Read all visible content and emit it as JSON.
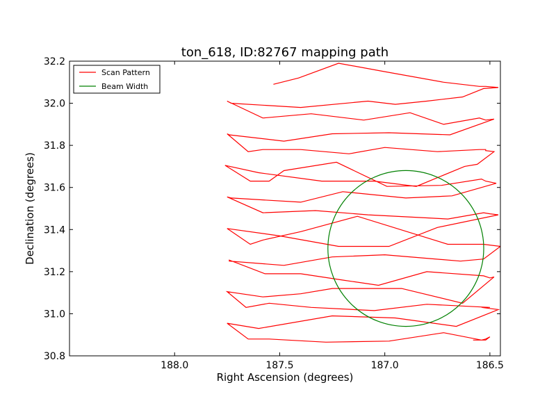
{
  "chart_data": {
    "type": "line",
    "title": "ton_618, ID:82767 mapping path",
    "xlabel": "Right Ascension (degrees)",
    "ylabel": "Declination (degrees)",
    "xlim": [
      188.5,
      186.45
    ],
    "ylim": [
      30.8,
      32.2
    ],
    "x_inverted": true,
    "xticks": [
      "188.0",
      "187.5",
      "187.0",
      "186.5"
    ],
    "xtick_values": [
      188.0,
      187.5,
      187.0,
      186.5
    ],
    "yticks": [
      "30.8",
      "31.0",
      "31.2",
      "31.4",
      "31.6",
      "31.8",
      "32.0",
      "32.2"
    ],
    "ytick_values": [
      30.8,
      31.0,
      31.2,
      31.4,
      31.6,
      31.8,
      32.0,
      32.2
    ],
    "grid": false,
    "legend_position": "top-left",
    "series": [
      {
        "name": "Scan Pattern",
        "color": "#ff0000",
        "kind": "path",
        "points": [
          [
            186.58,
            30.875
          ],
          [
            186.52,
            30.875
          ],
          [
            186.5,
            30.89
          ],
          [
            186.52,
            30.88
          ],
          [
            186.54,
            30.875
          ],
          [
            186.72,
            30.91
          ],
          [
            186.98,
            30.87
          ],
          [
            187.28,
            30.865
          ],
          [
            187.55,
            30.88
          ],
          [
            187.65,
            30.88
          ],
          [
            187.75,
            30.955
          ],
          [
            187.6,
            30.93
          ],
          [
            187.25,
            30.99
          ],
          [
            186.95,
            30.98
          ],
          [
            186.66,
            30.94
          ],
          [
            186.46,
            31.02
          ],
          [
            186.54,
            31.03
          ],
          [
            186.5,
            31.03
          ],
          [
            186.8,
            31.045
          ],
          [
            187.05,
            31.015
          ],
          [
            187.35,
            31.03
          ],
          [
            187.55,
            31.05
          ],
          [
            187.66,
            31.03
          ],
          [
            187.75,
            31.105
          ],
          [
            187.58,
            31.08
          ],
          [
            187.4,
            31.095
          ],
          [
            187.25,
            31.12
          ],
          [
            186.92,
            31.12
          ],
          [
            186.63,
            31.05
          ],
          [
            186.48,
            31.175
          ],
          [
            186.5,
            31.17
          ],
          [
            186.53,
            31.18
          ],
          [
            186.8,
            31.2
          ],
          [
            187.03,
            31.135
          ],
          [
            187.2,
            31.16
          ],
          [
            187.4,
            31.19
          ],
          [
            187.57,
            31.19
          ],
          [
            187.74,
            31.255
          ],
          [
            187.74,
            31.25
          ],
          [
            187.48,
            31.23
          ],
          [
            187.25,
            31.27
          ],
          [
            187.0,
            31.28
          ],
          [
            186.64,
            31.25
          ],
          [
            186.53,
            31.26
          ],
          [
            186.45,
            31.32
          ],
          [
            186.53,
            31.33
          ],
          [
            186.7,
            31.33
          ],
          [
            187.13,
            31.463
          ],
          [
            187.4,
            31.39
          ],
          [
            187.58,
            31.35
          ],
          [
            187.64,
            31.33
          ],
          [
            187.75,
            31.405
          ],
          [
            187.5,
            31.37
          ],
          [
            187.22,
            31.32
          ],
          [
            186.98,
            31.32
          ],
          [
            186.75,
            31.41
          ],
          [
            186.46,
            31.47
          ],
          [
            186.5,
            31.475
          ],
          [
            186.53,
            31.48
          ],
          [
            186.7,
            31.45
          ],
          [
            187.08,
            31.47
          ],
          [
            187.33,
            31.49
          ],
          [
            187.58,
            31.48
          ],
          [
            187.75,
            31.555
          ],
          [
            187.73,
            31.55
          ],
          [
            187.4,
            31.53
          ],
          [
            187.2,
            31.58
          ],
          [
            186.9,
            31.55
          ],
          [
            186.68,
            31.56
          ],
          [
            186.47,
            31.62
          ],
          [
            186.52,
            31.63
          ],
          [
            186.54,
            31.64
          ],
          [
            186.73,
            31.61
          ],
          [
            186.99,
            31.605
          ],
          [
            187.23,
            31.72
          ],
          [
            187.48,
            31.68
          ],
          [
            187.55,
            31.63
          ],
          [
            187.64,
            31.63
          ],
          [
            187.76,
            31.705
          ],
          [
            187.6,
            31.67
          ],
          [
            187.3,
            31.63
          ],
          [
            187.05,
            31.63
          ],
          [
            186.85,
            31.605
          ],
          [
            186.62,
            31.7
          ],
          [
            186.56,
            31.71
          ],
          [
            186.48,
            31.77
          ],
          [
            186.52,
            31.775
          ],
          [
            186.52,
            31.78
          ],
          [
            186.55,
            31.78
          ],
          [
            186.75,
            31.77
          ],
          [
            187.0,
            31.79
          ],
          [
            187.17,
            31.76
          ],
          [
            187.4,
            31.78
          ],
          [
            187.58,
            31.78
          ],
          [
            187.65,
            31.77
          ],
          [
            187.75,
            31.855
          ],
          [
            187.74,
            31.85
          ],
          [
            187.48,
            31.82
          ],
          [
            187.25,
            31.855
          ],
          [
            186.98,
            31.86
          ],
          [
            186.69,
            31.85
          ],
          [
            186.48,
            31.925
          ],
          [
            186.52,
            31.92
          ],
          [
            186.55,
            31.93
          ],
          [
            186.72,
            31.9
          ],
          [
            186.88,
            31.955
          ],
          [
            187.1,
            31.92
          ],
          [
            187.35,
            31.95
          ],
          [
            187.58,
            31.93
          ],
          [
            187.75,
            32.01
          ],
          [
            187.73,
            32.0
          ],
          [
            187.4,
            31.98
          ],
          [
            187.08,
            32.01
          ],
          [
            186.95,
            31.995
          ],
          [
            186.8,
            32.01
          ],
          [
            186.63,
            32.03
          ],
          [
            186.53,
            32.07
          ],
          [
            186.46,
            32.075
          ],
          [
            186.52,
            32.08
          ],
          [
            186.55,
            32.08
          ],
          [
            186.72,
            32.1
          ],
          [
            187.0,
            32.15
          ],
          [
            187.22,
            32.19
          ],
          [
            187.41,
            32.12
          ],
          [
            187.53,
            32.09
          ]
        ]
      },
      {
        "name": "Beam Width",
        "color": "#008000",
        "kind": "circle",
        "center": [
          186.9,
          31.31
        ],
        "radius_dec": 0.37
      }
    ]
  }
}
